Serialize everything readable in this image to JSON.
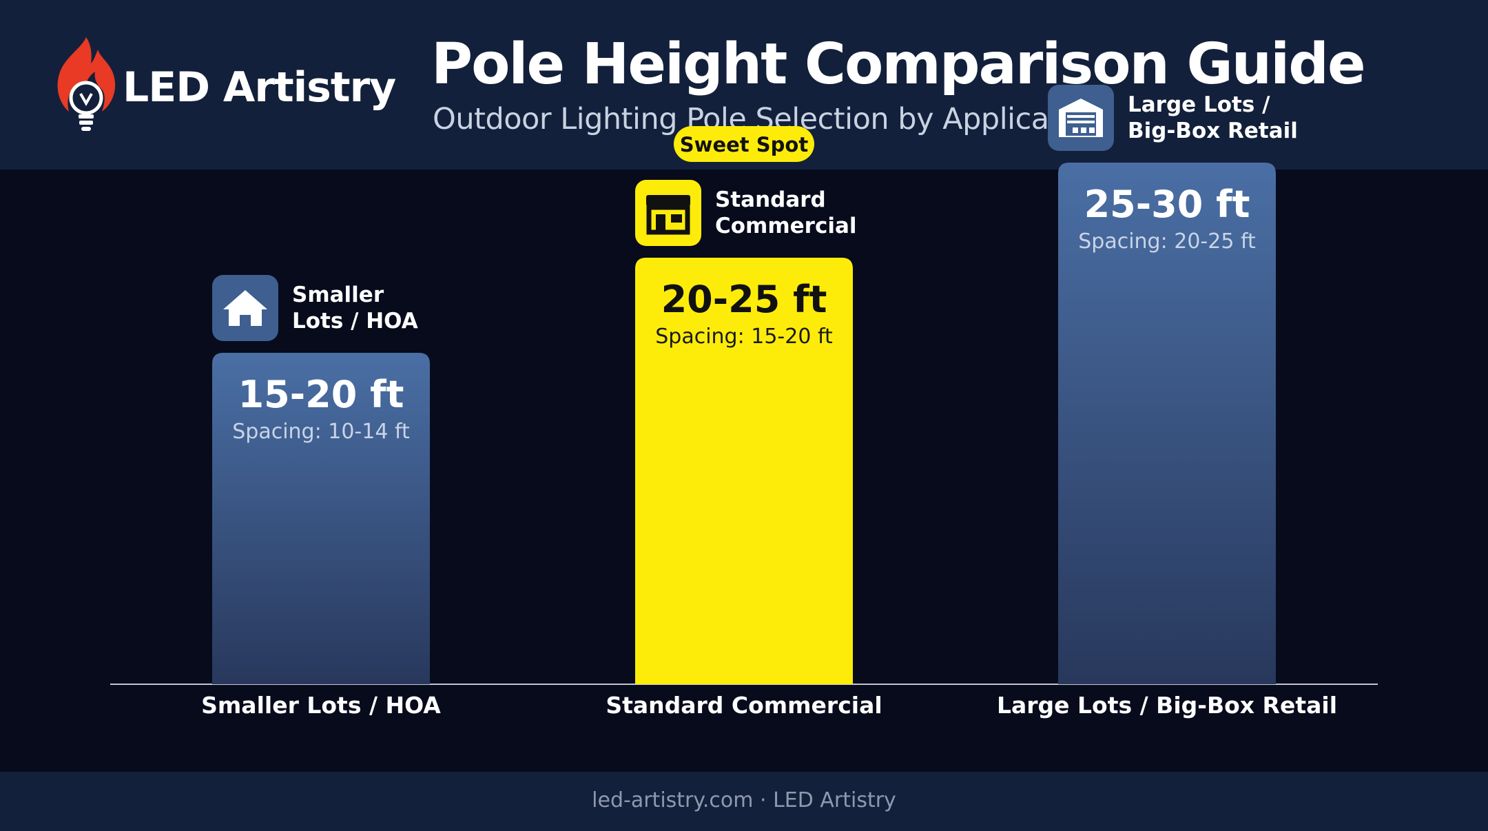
{
  "brand": {
    "name": "LED Artistry",
    "logo_icon": "flame-bulb-icon"
  },
  "header": {
    "title": "Pole Height Comparison Guide",
    "subtitle": "Outdoor Lighting Pole Selection by Application"
  },
  "colors": {
    "header_bg": "#13203b",
    "page_bg": "#070b1c",
    "bar_blue_top": "#4a6fa5",
    "bar_blue_bottom": "#2a3a5e",
    "highlight_yellow": "#fdec0a",
    "brand_red": "#e83a25"
  },
  "chart_data": {
    "type": "bar",
    "categories": [
      "Smaller Lots / HOA",
      "Standard Commercial",
      "Large Lots / Big-Box Retail"
    ],
    "category_labels_on_bars": [
      [
        "Smaller",
        "Lots / HOA"
      ],
      [
        "Standard",
        "Commercial"
      ],
      [
        "Large Lots /",
        "Big-Box Retail"
      ]
    ],
    "category_icons": [
      "house-icon",
      "storefront-icon",
      "warehouse-icon"
    ],
    "values": [
      [
        15,
        20
      ],
      [
        20,
        25
      ],
      [
        25,
        30
      ]
    ],
    "value_labels": [
      "15-20 ft",
      "20-25 ft",
      "25-30 ft"
    ],
    "spacing_labels": [
      "Spacing: 10-14 ft",
      "Spacing: 15-20 ft",
      "Spacing: 20-25 ft"
    ],
    "highlight_index": 1,
    "highlight_badge": "Sweet Spot",
    "unit": "ft",
    "ylim": [
      0,
      30
    ],
    "grid": false,
    "legend": "none"
  },
  "footer": {
    "text": "led-artistry.com · LED Artistry"
  }
}
